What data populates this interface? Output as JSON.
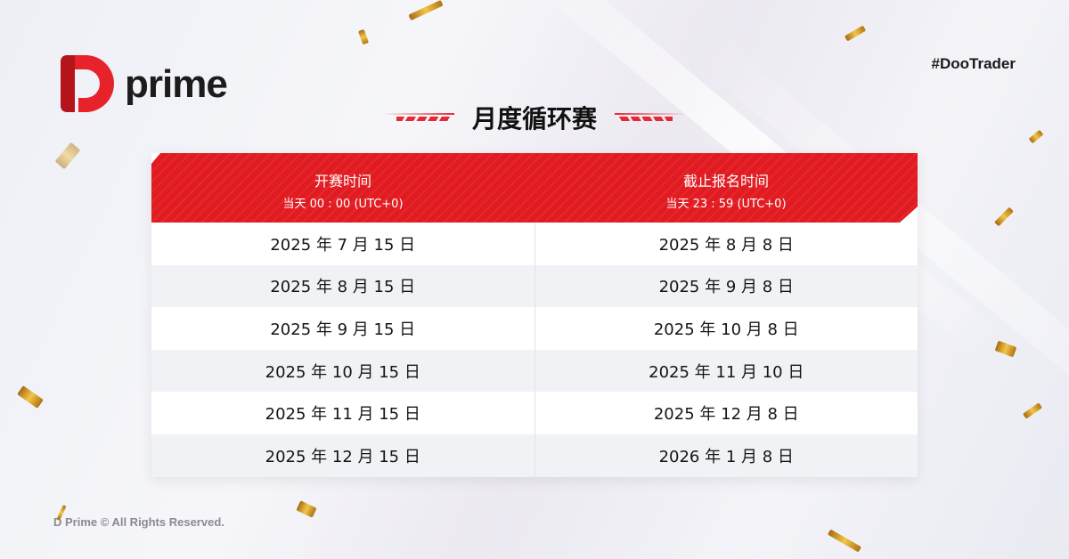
{
  "brand": {
    "logo_text": "prime",
    "logo_color": "#e8222a",
    "hashtag": "#DooTrader"
  },
  "title": "月度循环赛",
  "table": {
    "headers": [
      {
        "main": "开赛时间",
        "sub": "当天 00 : 00 (UTC+0)"
      },
      {
        "main": "截止报名时间",
        "sub": "当天 23 : 59 (UTC+0)"
      }
    ],
    "rows": [
      [
        "2025 年 7 月 15 日",
        "2025 年 8 月 8 日"
      ],
      [
        "2025 年 8 月 15 日",
        "2025 年 9 月 8 日"
      ],
      [
        "2025 年 9 月 15 日",
        "2025 年 10 月 8 日"
      ],
      [
        "2025 年 10 月 15 日",
        "2025 年 11 月 10 日"
      ],
      [
        "2025 年 11 月 15 日",
        "2025 年 12 月 8 日"
      ],
      [
        "2025 年 12 月 15 日",
        "2026 年 1 月 8 日"
      ]
    ],
    "header_color": "#e01c22"
  },
  "footer": "D Prime © All Rights Reserved."
}
